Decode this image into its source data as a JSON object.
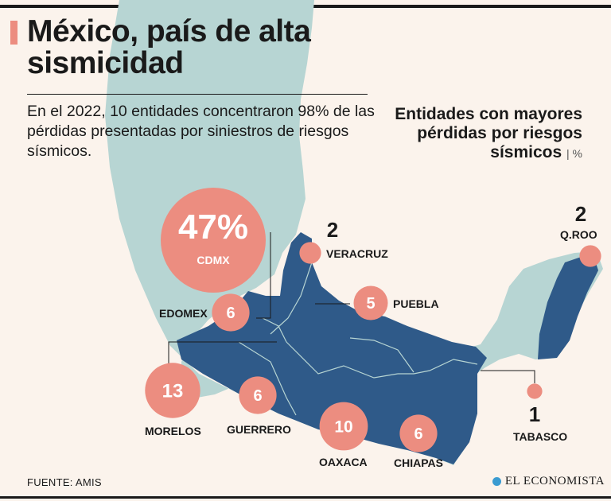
{
  "header": {
    "title": "México, país de alta sismicidad",
    "subtitle": "En el 2022, 10 entidades concentraron 98% de las pérdidas presentadas por siniestros de riesgos sísmicos.",
    "side_title": "Entidades con mayores pérdidas por riesgos sísmicos",
    "unit": "| %"
  },
  "footer": {
    "source": "FUENTE: AMIS",
    "brand": "EL ECONOMISTA"
  },
  "colors": {
    "background": "#fbf3ec",
    "bubble": "#ec8d80",
    "states": "#2f5a89",
    "land": "#b7d5d3"
  },
  "chart_data": {
    "type": "bubble-map",
    "title": "Entidades con mayores pérdidas por riesgos sísmicos",
    "unit": "%",
    "entities": [
      {
        "name": "CDMX",
        "value": 47,
        "display": "47%"
      },
      {
        "name": "MORELOS",
        "value": 13,
        "display": "13"
      },
      {
        "name": "OAXACA",
        "value": 10,
        "display": "10"
      },
      {
        "name": "EDOMEX",
        "value": 6,
        "display": "6"
      },
      {
        "name": "GUERRERO",
        "value": 6,
        "display": "6"
      },
      {
        "name": "CHIAPAS",
        "value": 6,
        "display": "6"
      },
      {
        "name": "PUEBLA",
        "value": 5,
        "display": "5"
      },
      {
        "name": "VERACRUZ",
        "value": 2,
        "display": "2"
      },
      {
        "name": "Q.ROO",
        "value": 2,
        "display": "2"
      },
      {
        "name": "TABASCO",
        "value": 1,
        "display": "1"
      }
    ]
  }
}
